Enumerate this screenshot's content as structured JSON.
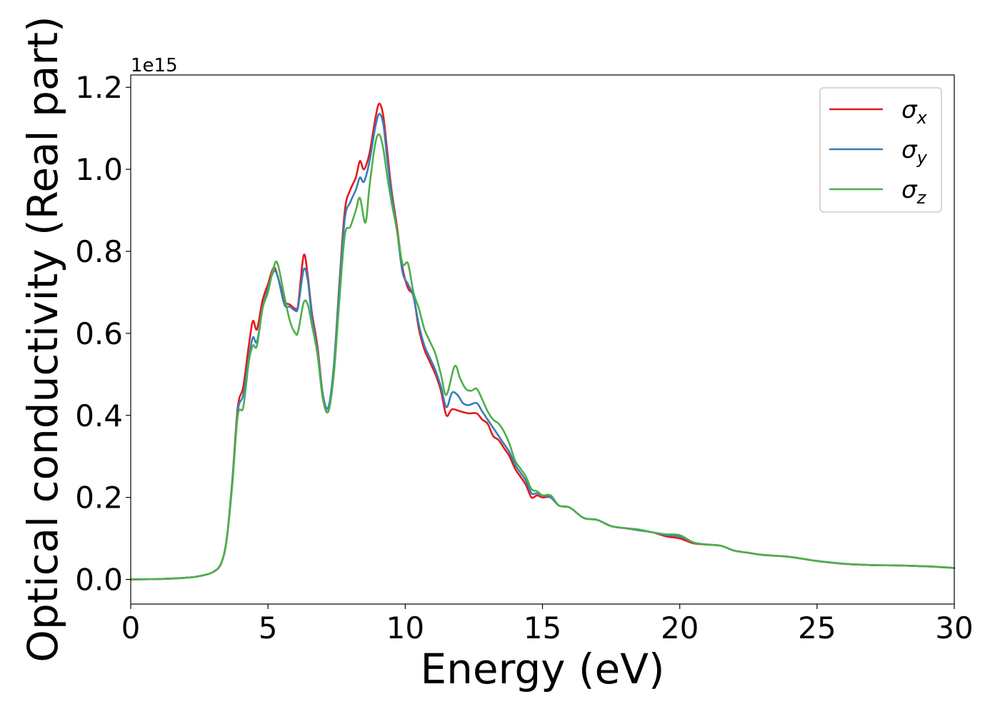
{
  "chart_data": {
    "type": "line",
    "title": "",
    "xlabel": "Energy (eV)",
    "ylabel": "Optical conductivity (Real part)",
    "y_offset_label": "1e15",
    "xlim": [
      0,
      30
    ],
    "ylim": [
      -0.06,
      1.23
    ],
    "x_ticks": [
      0,
      5,
      10,
      15,
      20,
      25,
      30
    ],
    "x_tick_labels": [
      "0",
      "5",
      "10",
      "15",
      "20",
      "25",
      "30"
    ],
    "y_ticks": [
      0.0,
      0.2,
      0.4,
      0.6,
      0.8,
      1.0,
      1.2
    ],
    "y_tick_labels": [
      "0.0",
      "0.2",
      "0.4",
      "0.6",
      "0.8",
      "1.0",
      "1.2"
    ],
    "grid": false,
    "legend_position": "top-right",
    "series": [
      {
        "name": "σx",
        "symbol": "σ",
        "subscript": "x",
        "color": "#e41a1c",
        "points": [
          [
            0,
            0
          ],
          [
            1,
            0.001
          ],
          [
            2,
            0.004
          ],
          [
            2.5,
            0.008
          ],
          [
            3,
            0.018
          ],
          [
            3.3,
            0.04
          ],
          [
            3.5,
            0.1
          ],
          [
            3.7,
            0.24
          ],
          [
            3.9,
            0.42
          ],
          [
            4.1,
            0.47
          ],
          [
            4.3,
            0.57
          ],
          [
            4.45,
            0.63
          ],
          [
            4.6,
            0.61
          ],
          [
            4.8,
            0.68
          ],
          [
            5.0,
            0.72
          ],
          [
            5.2,
            0.76
          ],
          [
            5.35,
            0.74
          ],
          [
            5.6,
            0.68
          ],
          [
            5.8,
            0.67
          ],
          [
            6.0,
            0.66
          ],
          [
            6.1,
            0.67
          ],
          [
            6.3,
            0.79
          ],
          [
            6.45,
            0.74
          ],
          [
            6.6,
            0.65
          ],
          [
            6.8,
            0.57
          ],
          [
            7.0,
            0.45
          ],
          [
            7.2,
            0.41
          ],
          [
            7.4,
            0.52
          ],
          [
            7.6,
            0.72
          ],
          [
            7.8,
            0.9
          ],
          [
            8.0,
            0.95
          ],
          [
            8.2,
            0.98
          ],
          [
            8.35,
            1.02
          ],
          [
            8.5,
            1.0
          ],
          [
            8.7,
            1.04
          ],
          [
            8.9,
            1.12
          ],
          [
            9.05,
            1.16
          ],
          [
            9.2,
            1.13
          ],
          [
            9.35,
            1.04
          ],
          [
            9.5,
            0.95
          ],
          [
            9.7,
            0.86
          ],
          [
            9.9,
            0.76
          ],
          [
            10.1,
            0.71
          ],
          [
            10.3,
            0.69
          ],
          [
            10.5,
            0.61
          ],
          [
            10.7,
            0.56
          ],
          [
            10.9,
            0.53
          ],
          [
            11.1,
            0.5
          ],
          [
            11.3,
            0.46
          ],
          [
            11.5,
            0.4
          ],
          [
            11.7,
            0.415
          ],
          [
            12.0,
            0.41
          ],
          [
            12.3,
            0.405
          ],
          [
            12.6,
            0.405
          ],
          [
            12.8,
            0.39
          ],
          [
            13.0,
            0.38
          ],
          [
            13.2,
            0.35
          ],
          [
            13.4,
            0.34
          ],
          [
            13.6,
            0.32
          ],
          [
            13.8,
            0.3
          ],
          [
            14.0,
            0.27
          ],
          [
            14.2,
            0.25
          ],
          [
            14.4,
            0.23
          ],
          [
            14.6,
            0.2
          ],
          [
            14.8,
            0.205
          ],
          [
            15.0,
            0.2
          ],
          [
            15.3,
            0.2
          ],
          [
            15.6,
            0.18
          ],
          [
            16.0,
            0.175
          ],
          [
            16.5,
            0.15
          ],
          [
            17.0,
            0.145
          ],
          [
            17.5,
            0.13
          ],
          [
            18.0,
            0.125
          ],
          [
            18.5,
            0.12
          ],
          [
            19.0,
            0.115
          ],
          [
            19.5,
            0.105
          ],
          [
            20.0,
            0.1
          ],
          [
            20.5,
            0.088
          ],
          [
            21.0,
            0.085
          ],
          [
            21.5,
            0.082
          ],
          [
            22.0,
            0.07
          ],
          [
            22.5,
            0.065
          ],
          [
            23.0,
            0.06
          ],
          [
            24.0,
            0.055
          ],
          [
            25.0,
            0.045
          ],
          [
            26.0,
            0.038
          ],
          [
            27.0,
            0.035
          ],
          [
            28.0,
            0.034
          ],
          [
            29.0,
            0.032
          ],
          [
            30.0,
            0.028
          ]
        ]
      },
      {
        "name": "σy",
        "symbol": "σ",
        "subscript": "y",
        "color": "#377eb8",
        "points": [
          [
            0,
            0
          ],
          [
            1,
            0.001
          ],
          [
            2,
            0.004
          ],
          [
            2.5,
            0.008
          ],
          [
            3,
            0.018
          ],
          [
            3.3,
            0.04
          ],
          [
            3.5,
            0.1
          ],
          [
            3.7,
            0.24
          ],
          [
            3.9,
            0.41
          ],
          [
            4.1,
            0.45
          ],
          [
            4.3,
            0.54
          ],
          [
            4.45,
            0.59
          ],
          [
            4.6,
            0.58
          ],
          [
            4.8,
            0.66
          ],
          [
            5.0,
            0.71
          ],
          [
            5.2,
            0.75
          ],
          [
            5.35,
            0.74
          ],
          [
            5.6,
            0.67
          ],
          [
            5.8,
            0.665
          ],
          [
            6.0,
            0.655
          ],
          [
            6.1,
            0.665
          ],
          [
            6.3,
            0.755
          ],
          [
            6.45,
            0.73
          ],
          [
            6.6,
            0.64
          ],
          [
            6.8,
            0.56
          ],
          [
            7.0,
            0.45
          ],
          [
            7.2,
            0.42
          ],
          [
            7.4,
            0.52
          ],
          [
            7.6,
            0.71
          ],
          [
            7.8,
            0.88
          ],
          [
            8.0,
            0.92
          ],
          [
            8.2,
            0.95
          ],
          [
            8.35,
            0.98
          ],
          [
            8.5,
            0.97
          ],
          [
            8.7,
            1.02
          ],
          [
            8.9,
            1.1
          ],
          [
            9.05,
            1.135
          ],
          [
            9.2,
            1.11
          ],
          [
            9.35,
            1.02
          ],
          [
            9.5,
            0.94
          ],
          [
            9.7,
            0.85
          ],
          [
            9.9,
            0.75
          ],
          [
            10.1,
            0.72
          ],
          [
            10.3,
            0.69
          ],
          [
            10.5,
            0.62
          ],
          [
            10.7,
            0.57
          ],
          [
            10.9,
            0.54
          ],
          [
            11.1,
            0.51
          ],
          [
            11.3,
            0.47
          ],
          [
            11.5,
            0.42
          ],
          [
            11.7,
            0.455
          ],
          [
            11.9,
            0.45
          ],
          [
            12.1,
            0.43
          ],
          [
            12.3,
            0.425
          ],
          [
            12.6,
            0.43
          ],
          [
            12.8,
            0.41
          ],
          [
            13.0,
            0.39
          ],
          [
            13.2,
            0.37
          ],
          [
            13.4,
            0.35
          ],
          [
            13.6,
            0.33
          ],
          [
            13.8,
            0.31
          ],
          [
            14.0,
            0.28
          ],
          [
            14.2,
            0.26
          ],
          [
            14.4,
            0.24
          ],
          [
            14.6,
            0.21
          ],
          [
            14.8,
            0.21
          ],
          [
            15.0,
            0.205
          ],
          [
            15.3,
            0.2
          ],
          [
            15.6,
            0.18
          ],
          [
            16.0,
            0.175
          ],
          [
            16.5,
            0.15
          ],
          [
            17.0,
            0.145
          ],
          [
            17.5,
            0.13
          ],
          [
            18.0,
            0.125
          ],
          [
            18.5,
            0.12
          ],
          [
            19.0,
            0.115
          ],
          [
            19.5,
            0.108
          ],
          [
            20.0,
            0.105
          ],
          [
            20.5,
            0.09
          ],
          [
            21.0,
            0.085
          ],
          [
            21.5,
            0.082
          ],
          [
            22.0,
            0.07
          ],
          [
            22.5,
            0.065
          ],
          [
            23.0,
            0.06
          ],
          [
            24.0,
            0.055
          ],
          [
            25.0,
            0.045
          ],
          [
            26.0,
            0.038
          ],
          [
            27.0,
            0.035
          ],
          [
            28.0,
            0.034
          ],
          [
            29.0,
            0.032
          ],
          [
            30.0,
            0.028
          ]
        ]
      },
      {
        "name": "σz",
        "symbol": "σ",
        "subscript": "z",
        "color": "#4daf4a",
        "points": [
          [
            0,
            0
          ],
          [
            1,
            0.001
          ],
          [
            2,
            0.004
          ],
          [
            2.5,
            0.008
          ],
          [
            3,
            0.018
          ],
          [
            3.3,
            0.04
          ],
          [
            3.5,
            0.1
          ],
          [
            3.7,
            0.23
          ],
          [
            3.9,
            0.4
          ],
          [
            4.1,
            0.42
          ],
          [
            4.3,
            0.53
          ],
          [
            4.45,
            0.57
          ],
          [
            4.6,
            0.57
          ],
          [
            4.8,
            0.66
          ],
          [
            5.0,
            0.7
          ],
          [
            5.2,
            0.76
          ],
          [
            5.35,
            0.77
          ],
          [
            5.6,
            0.69
          ],
          [
            5.8,
            0.63
          ],
          [
            6.0,
            0.6
          ],
          [
            6.1,
            0.605
          ],
          [
            6.3,
            0.675
          ],
          [
            6.45,
            0.67
          ],
          [
            6.6,
            0.62
          ],
          [
            6.8,
            0.55
          ],
          [
            7.0,
            0.44
          ],
          [
            7.2,
            0.41
          ],
          [
            7.4,
            0.5
          ],
          [
            7.6,
            0.68
          ],
          [
            7.8,
            0.84
          ],
          [
            8.0,
            0.86
          ],
          [
            8.2,
            0.9
          ],
          [
            8.35,
            0.93
          ],
          [
            8.55,
            0.87
          ],
          [
            8.7,
            0.96
          ],
          [
            8.9,
            1.06
          ],
          [
            9.05,
            1.085
          ],
          [
            9.2,
            1.05
          ],
          [
            9.35,
            0.98
          ],
          [
            9.5,
            0.92
          ],
          [
            9.7,
            0.85
          ],
          [
            9.9,
            0.77
          ],
          [
            10.1,
            0.77
          ],
          [
            10.3,
            0.7
          ],
          [
            10.5,
            0.66
          ],
          [
            10.7,
            0.61
          ],
          [
            10.9,
            0.58
          ],
          [
            11.1,
            0.55
          ],
          [
            11.3,
            0.5
          ],
          [
            11.5,
            0.45
          ],
          [
            11.8,
            0.52
          ],
          [
            12.0,
            0.49
          ],
          [
            12.2,
            0.465
          ],
          [
            12.4,
            0.46
          ],
          [
            12.6,
            0.465
          ],
          [
            12.8,
            0.44
          ],
          [
            13.0,
            0.41
          ],
          [
            13.2,
            0.39
          ],
          [
            13.4,
            0.38
          ],
          [
            13.6,
            0.36
          ],
          [
            13.8,
            0.33
          ],
          [
            14.0,
            0.29
          ],
          [
            14.2,
            0.27
          ],
          [
            14.4,
            0.25
          ],
          [
            14.6,
            0.22
          ],
          [
            14.8,
            0.215
          ],
          [
            15.0,
            0.205
          ],
          [
            15.3,
            0.205
          ],
          [
            15.6,
            0.18
          ],
          [
            16.0,
            0.175
          ],
          [
            16.5,
            0.15
          ],
          [
            17.0,
            0.145
          ],
          [
            17.5,
            0.13
          ],
          [
            18.0,
            0.125
          ],
          [
            18.5,
            0.122
          ],
          [
            19.0,
            0.115
          ],
          [
            19.5,
            0.11
          ],
          [
            20.0,
            0.108
          ],
          [
            20.5,
            0.09
          ],
          [
            21.0,
            0.085
          ],
          [
            21.5,
            0.082
          ],
          [
            22.0,
            0.07
          ],
          [
            22.5,
            0.065
          ],
          [
            23.0,
            0.06
          ],
          [
            24.0,
            0.055
          ],
          [
            25.0,
            0.045
          ],
          [
            26.0,
            0.038
          ],
          [
            27.0,
            0.035
          ],
          [
            28.0,
            0.034
          ],
          [
            29.0,
            0.032
          ],
          [
            30.0,
            0.028
          ]
        ]
      }
    ]
  }
}
